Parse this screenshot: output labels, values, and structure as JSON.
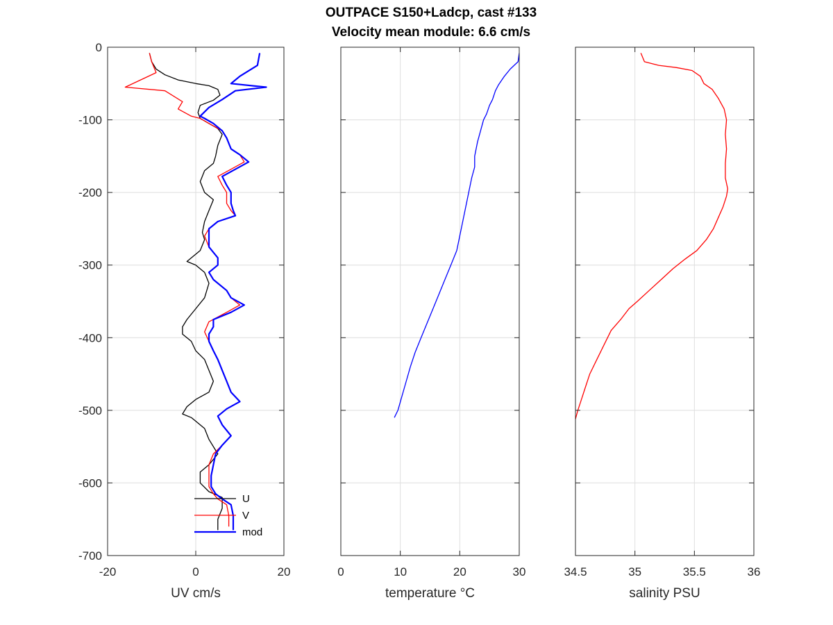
{
  "figure": {
    "title_line1": "OUTPACE S150+Ladcp, cast #133",
    "title_line2": "Velocity mean module:  6.6 cm/s"
  },
  "chart_data": [
    {
      "type": "line",
      "xlabel": "UV cm/s",
      "ylabel": "",
      "xlim": [
        -20,
        20
      ],
      "ylim": [
        -700,
        0
      ],
      "xticks": [
        -20,
        0,
        20
      ],
      "yticks": [
        0,
        -100,
        -200,
        -300,
        -400,
        -500,
        -600,
        -700
      ],
      "grid": true,
      "legend_position": "bottom-right",
      "series": [
        {
          "name": "U",
          "color": "#000000",
          "points": [
            [
              -10.5,
              -8
            ],
            [
              -10,
              -20
            ],
            [
              -9,
              -30
            ],
            [
              -7,
              -38
            ],
            [
              -4,
              -45
            ],
            [
              0,
              -50
            ],
            [
              3,
              -53
            ],
            [
              5,
              -58
            ],
            [
              5.5,
              -66
            ],
            [
              4,
              -73
            ],
            [
              1,
              -80
            ],
            [
              0.5,
              -90
            ],
            [
              1,
              -98
            ],
            [
              3,
              -105
            ],
            [
              5,
              -112
            ],
            [
              6,
              -120
            ],
            [
              5,
              -135
            ],
            [
              4.5,
              -150
            ],
            [
              4,
              -160
            ],
            [
              2,
              -170
            ],
            [
              1,
              -185
            ],
            [
              2,
              -200
            ],
            [
              4,
              -210
            ],
            [
              3,
              -225
            ],
            [
              2,
              -240
            ],
            [
              1.5,
              -255
            ],
            [
              2,
              -265
            ],
            [
              1,
              -280
            ],
            [
              -2,
              -295
            ],
            [
              0,
              -300
            ],
            [
              2,
              -310
            ],
            [
              3,
              -325
            ],
            [
              2,
              -345
            ],
            [
              0,
              -360
            ],
            [
              -2,
              -375
            ],
            [
              -3,
              -385
            ],
            [
              -3,
              -395
            ],
            [
              -1,
              -405
            ],
            [
              0,
              -418
            ],
            [
              2,
              -430
            ],
            [
              3,
              -445
            ],
            [
              4,
              -460
            ],
            [
              3,
              -475
            ],
            [
              0,
              -485
            ],
            [
              -2,
              -495
            ],
            [
              -3,
              -505
            ],
            [
              -1,
              -510
            ],
            [
              0,
              -515
            ],
            [
              2,
              -525
            ],
            [
              3,
              -540
            ],
            [
              5,
              -560
            ],
            [
              3,
              -575
            ],
            [
              1,
              -585
            ],
            [
              1,
              -600
            ],
            [
              3,
              -612
            ],
            [
              6,
              -620
            ],
            [
              6,
              -635
            ],
            [
              5,
              -650
            ],
            [
              5,
              -665
            ]
          ]
        },
        {
          "name": "V",
          "color": "#ff0000",
          "points": [
            [
              -10.5,
              -8
            ],
            [
              -10,
              -20
            ],
            [
              -9,
              -35
            ],
            [
              -16,
              -55
            ],
            [
              -7,
              -60
            ],
            [
              -3,
              -75
            ],
            [
              -4,
              -85
            ],
            [
              -1,
              -95
            ],
            [
              1,
              -98
            ],
            [
              3,
              -105
            ],
            [
              6,
              -115
            ],
            [
              7,
              -125
            ],
            [
              8,
              -140
            ],
            [
              10,
              -148
            ],
            [
              11,
              -158
            ],
            [
              8,
              -168
            ],
            [
              5,
              -178
            ],
            [
              6,
              -190
            ],
            [
              7,
              -200
            ],
            [
              7,
              -215
            ],
            [
              8,
              -225
            ],
            [
              9,
              -232
            ],
            [
              5,
              -240
            ],
            [
              3,
              -250
            ],
            [
              2,
              -260
            ],
            [
              3,
              -275
            ],
            [
              5,
              -290
            ],
            [
              5,
              -300
            ],
            [
              3,
              -310
            ],
            [
              4,
              -320
            ],
            [
              7,
              -335
            ],
            [
              8,
              -345
            ],
            [
              10,
              -355
            ],
            [
              7,
              -365
            ],
            [
              3,
              -378
            ],
            [
              2,
              -392
            ],
            [
              3,
              -405
            ],
            [
              4,
              -418
            ],
            [
              5,
              -430
            ],
            [
              6,
              -445
            ],
            [
              7,
              -460
            ],
            [
              8,
              -475
            ],
            [
              10,
              -488
            ],
            [
              7,
              -498
            ],
            [
              5,
              -508
            ],
            [
              6,
              -520
            ],
            [
              8,
              -535
            ],
            [
              6,
              -548
            ],
            [
              4,
              -560
            ],
            [
              3,
              -575
            ],
            [
              3,
              -590
            ],
            [
              3,
              -605
            ],
            [
              4,
              -615
            ],
            [
              5,
              -622
            ],
            [
              7,
              -630
            ],
            [
              7.5,
              -645
            ],
            [
              7.5,
              -660
            ]
          ]
        },
        {
          "name": "mod",
          "color": "#0000ff",
          "points": [
            [
              14.5,
              -8
            ],
            [
              14,
              -25
            ],
            [
              10,
              -40
            ],
            [
              9,
              -45
            ],
            [
              8,
              -50
            ],
            [
              16,
              -55
            ],
            [
              9,
              -60
            ],
            [
              6,
              -72
            ],
            [
              3,
              -83
            ],
            [
              1,
              -95
            ],
            [
              2,
              -98
            ],
            [
              4,
              -105
            ],
            [
              6,
              -115
            ],
            [
              7,
              -125
            ],
            [
              8,
              -140
            ],
            [
              10,
              -148
            ],
            [
              12,
              -158
            ],
            [
              9,
              -168
            ],
            [
              6,
              -178
            ],
            [
              7,
              -190
            ],
            [
              8,
              -200
            ],
            [
              8,
              -215
            ],
            [
              8.5,
              -225
            ],
            [
              9,
              -232
            ],
            [
              5,
              -240
            ],
            [
              3,
              -250
            ],
            [
              3,
              -260
            ],
            [
              3,
              -275
            ],
            [
              5,
              -290
            ],
            [
              5,
              -300
            ],
            [
              3,
              -310
            ],
            [
              4,
              -320
            ],
            [
              7,
              -335
            ],
            [
              8,
              -345
            ],
            [
              11,
              -355
            ],
            [
              8,
              -365
            ],
            [
              4,
              -375
            ],
            [
              4,
              -385
            ],
            [
              3,
              -395
            ],
            [
              3,
              -405
            ],
            [
              4,
              -418
            ],
            [
              5,
              -430
            ],
            [
              6,
              -445
            ],
            [
              7,
              -460
            ],
            [
              8,
              -475
            ],
            [
              10,
              -488
            ],
            [
              7,
              -498
            ],
            [
              5,
              -508
            ],
            [
              6,
              -520
            ],
            [
              8,
              -535
            ],
            [
              6,
              -548
            ],
            [
              4.5,
              -560
            ],
            [
              4,
              -575
            ],
            [
              3.5,
              -590
            ],
            [
              3.5,
              -605
            ],
            [
              4.5,
              -615
            ],
            [
              6,
              -622
            ],
            [
              8,
              -630
            ],
            [
              8.5,
              -645
            ],
            [
              8.5,
              -665
            ]
          ]
        }
      ]
    },
    {
      "type": "line",
      "xlabel": "temperature °C",
      "ylabel": "",
      "xlim": [
        0,
        30
      ],
      "ylim": [
        -700,
        0
      ],
      "xticks": [
        0,
        10,
        20,
        30
      ],
      "grid": true,
      "series": [
        {
          "name": "",
          "color": "#0000ff",
          "points": [
            [
              30,
              -8
            ],
            [
              29.8,
              -20
            ],
            [
              28.5,
              -30
            ],
            [
              27.5,
              -40
            ],
            [
              26.5,
              -52
            ],
            [
              26,
              -60
            ],
            [
              25.5,
              -72
            ],
            [
              25,
              -80
            ],
            [
              24.5,
              -92
            ],
            [
              24,
              -100
            ],
            [
              23.5,
              -115
            ],
            [
              23,
              -130
            ],
            [
              22.5,
              -150
            ],
            [
              22.5,
              -165
            ],
            [
              22,
              -180
            ],
            [
              21.5,
              -200
            ],
            [
              21,
              -220
            ],
            [
              20.5,
              -240
            ],
            [
              20,
              -260
            ],
            [
              19.5,
              -280
            ],
            [
              18.5,
              -300
            ],
            [
              17.5,
              -320
            ],
            [
              16.5,
              -340
            ],
            [
              15.5,
              -360
            ],
            [
              14.5,
              -380
            ],
            [
              13.5,
              -400
            ],
            [
              12.5,
              -420
            ],
            [
              11.7,
              -440
            ],
            [
              11,
              -460
            ],
            [
              10.3,
              -480
            ],
            [
              9.6,
              -500
            ],
            [
              9,
              -510
            ]
          ]
        }
      ]
    },
    {
      "type": "line",
      "xlabel": "salinity PSU",
      "ylabel": "",
      "xlim": [
        34.5,
        36
      ],
      "ylim": [
        -700,
        0
      ],
      "xticks": [
        34.5,
        35,
        35.5,
        36
      ],
      "grid": true,
      "series": [
        {
          "name": "",
          "color": "#ff0000",
          "points": [
            [
              35.05,
              -8
            ],
            [
              35.08,
              -20
            ],
            [
              35.2,
              -25
            ],
            [
              35.35,
              -28
            ],
            [
              35.48,
              -32
            ],
            [
              35.55,
              -40
            ],
            [
              35.58,
              -50
            ],
            [
              35.65,
              -58
            ],
            [
              35.7,
              -70
            ],
            [
              35.75,
              -85
            ],
            [
              35.77,
              -100
            ],
            [
              35.76,
              -120
            ],
            [
              35.77,
              -140
            ],
            [
              35.76,
              -160
            ],
            [
              35.76,
              -180
            ],
            [
              35.78,
              -195
            ],
            [
              35.77,
              -205
            ],
            [
              35.74,
              -220
            ],
            [
              35.7,
              -235
            ],
            [
              35.66,
              -250
            ],
            [
              35.6,
              -265
            ],
            [
              35.52,
              -280
            ],
            [
              35.42,
              -292
            ],
            [
              35.32,
              -305
            ],
            [
              35.22,
              -320
            ],
            [
              35.12,
              -335
            ],
            [
              35.02,
              -350
            ],
            [
              34.95,
              -360
            ],
            [
              34.88,
              -375
            ],
            [
              34.8,
              -390
            ],
            [
              34.74,
              -410
            ],
            [
              34.68,
              -430
            ],
            [
              34.62,
              -450
            ],
            [
              34.58,
              -470
            ],
            [
              34.55,
              -485
            ],
            [
              34.52,
              -500
            ],
            [
              34.5,
              -512
            ]
          ]
        }
      ]
    }
  ]
}
